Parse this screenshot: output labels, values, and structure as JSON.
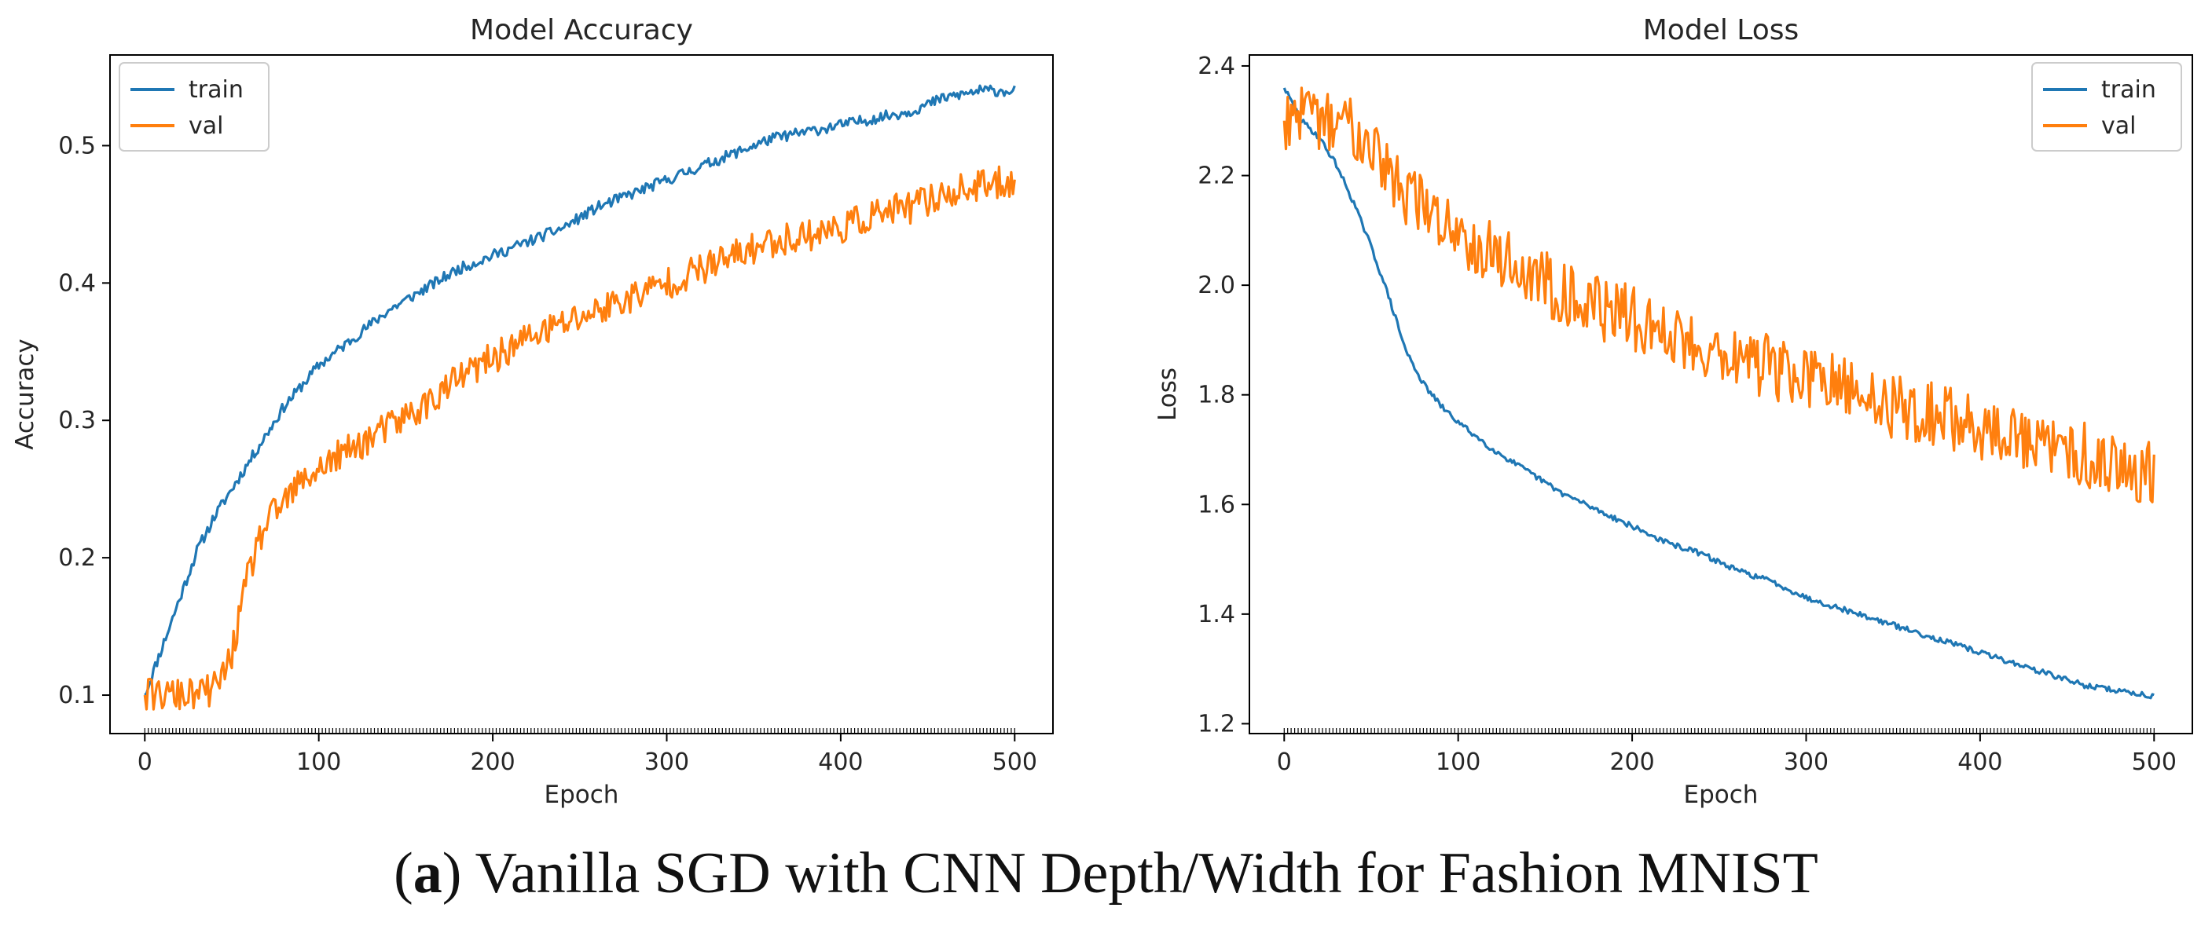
{
  "chart_data": [
    {
      "type": "line",
      "title": "Model Accuracy",
      "xlabel": "Epoch",
      "ylabel": "Accuracy",
      "xlim": [
        -20,
        522
      ],
      "ylim": [
        0.072,
        0.566
      ],
      "xticks": [
        0,
        100,
        200,
        300,
        400,
        500
      ],
      "yticks": [
        0.1,
        0.2,
        0.3,
        0.4,
        0.5
      ],
      "xticklabels": [
        "0",
        "100",
        "200",
        "300",
        "400",
        "500"
      ],
      "yticklabels": [
        "0.1",
        "0.2",
        "0.3",
        "0.4",
        "0.5"
      ],
      "legend_position": "top-left",
      "series": [
        {
          "name": "train",
          "color": "#1f77b4",
          "x": [
            0,
            10,
            20,
            30,
            40,
            50,
            60,
            70,
            80,
            90,
            100,
            120,
            140,
            160,
            180,
            200,
            220,
            240,
            260,
            280,
            300,
            320,
            340,
            360,
            380,
            400,
            420,
            440,
            460,
            480,
            500
          ],
          "values": [
            0.1,
            0.135,
            0.17,
            0.205,
            0.23,
            0.25,
            0.27,
            0.29,
            0.31,
            0.325,
            0.34,
            0.36,
            0.38,
            0.395,
            0.41,
            0.42,
            0.43,
            0.44,
            0.455,
            0.465,
            0.475,
            0.485,
            0.495,
            0.505,
            0.51,
            0.515,
            0.52,
            0.525,
            0.535,
            0.54,
            0.54
          ],
          "noise": 0.004
        },
        {
          "name": "val",
          "color": "#ff7f0e",
          "x": [
            0,
            10,
            20,
            30,
            40,
            45,
            50,
            55,
            60,
            65,
            70,
            80,
            90,
            100,
            120,
            140,
            160,
            180,
            200,
            220,
            240,
            260,
            280,
            300,
            320,
            340,
            360,
            380,
            400,
            420,
            440,
            460,
            480,
            500
          ],
          "values": [
            0.1,
            0.1,
            0.1,
            0.1,
            0.105,
            0.115,
            0.13,
            0.16,
            0.19,
            0.21,
            0.225,
            0.24,
            0.255,
            0.265,
            0.28,
            0.295,
            0.31,
            0.33,
            0.345,
            0.36,
            0.37,
            0.38,
            0.39,
            0.4,
            0.41,
            0.42,
            0.43,
            0.435,
            0.44,
            0.45,
            0.455,
            0.465,
            0.47,
            0.475
          ],
          "noise": 0.012
        }
      ]
    },
    {
      "type": "line",
      "title": "Model Loss",
      "xlabel": "Epoch",
      "ylabel": "Loss",
      "xlim": [
        -20,
        522
      ],
      "ylim": [
        1.182,
        2.42
      ],
      "xticks": [
        0,
        100,
        200,
        300,
        400,
        500
      ],
      "yticks": [
        1.2,
        1.4,
        1.6,
        1.8,
        2.0,
        2.2,
        2.4
      ],
      "xticklabels": [
        "0",
        "100",
        "200",
        "300",
        "400",
        "500"
      ],
      "yticklabels": [
        "1.2",
        "1.4",
        "1.6",
        "1.8",
        "2.0",
        "2.2",
        "2.4"
      ],
      "legend_position": "top-right",
      "series": [
        {
          "name": "train",
          "color": "#1f77b4",
          "x": [
            0,
            10,
            20,
            30,
            40,
            50,
            60,
            70,
            80,
            90,
            100,
            120,
            140,
            160,
            180,
            200,
            220,
            240,
            260,
            280,
            300,
            320,
            340,
            360,
            380,
            400,
            420,
            440,
            460,
            480,
            500
          ],
          "values": [
            2.36,
            2.3,
            2.27,
            2.22,
            2.15,
            2.07,
            1.98,
            1.88,
            1.82,
            1.78,
            1.75,
            1.7,
            1.66,
            1.62,
            1.59,
            1.56,
            1.53,
            1.51,
            1.48,
            1.46,
            1.43,
            1.41,
            1.39,
            1.37,
            1.35,
            1.33,
            1.31,
            1.29,
            1.27,
            1.26,
            1.25
          ],
          "noise": 0.005
        },
        {
          "name": "val",
          "color": "#ff7f0e",
          "x": [
            0,
            10,
            20,
            30,
            40,
            50,
            60,
            70,
            80,
            100,
            120,
            140,
            160,
            180,
            200,
            220,
            240,
            260,
            280,
            300,
            320,
            340,
            360,
            380,
            400,
            420,
            440,
            460,
            480,
            500
          ],
          "values": [
            2.3,
            2.3,
            2.3,
            2.3,
            2.29,
            2.27,
            2.2,
            2.17,
            2.14,
            2.1,
            2.06,
            2.02,
            1.99,
            1.96,
            1.94,
            1.91,
            1.89,
            1.87,
            1.85,
            1.83,
            1.81,
            1.79,
            1.77,
            1.76,
            1.74,
            1.72,
            1.7,
            1.69,
            1.67,
            1.66
          ],
          "noise": 0.06
        }
      ]
    }
  ],
  "caption": {
    "label": "a",
    "text": "Vanilla SGD with CNN Depth/Width for Fashion MNIST"
  }
}
